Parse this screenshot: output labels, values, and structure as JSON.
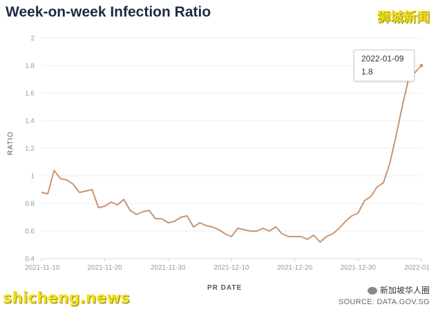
{
  "header": {
    "title": "Week-on-week Infection Ratio",
    "brand_cn": "狮城新闻"
  },
  "tooltip": {
    "date": "2022-01-09",
    "value": "1.8"
  },
  "footer": {
    "watermark": "shicheng.news",
    "wechat_label": "新加坡华人圈",
    "source": "SOURCE: DATA.GOV.SG"
  },
  "colors": {
    "line": "#c99470",
    "grid": "#ececec",
    "tick_text": "#9a9a9a",
    "brand_yellow": "#f2e21b"
  },
  "icons": [
    "wechat-icon"
  ],
  "chart_data": {
    "type": "line",
    "title": "Week-on-week Infection Ratio",
    "xlabel": "PR DATE",
    "ylabel": "RATIO",
    "ylim": [
      0.4,
      2
    ],
    "yticks": [
      0.4,
      0.6,
      0.8,
      1,
      1.2,
      1.4,
      1.6,
      1.8,
      2
    ],
    "ytick_labels": [
      "0.4",
      "0.6",
      "0.8",
      "1",
      "1.2",
      "1.4",
      "1.6",
      "1.8",
      "2"
    ],
    "xtick_labels": [
      "2021-11-10",
      "2021-11-20",
      "2021-11-30",
      "2021-12-10",
      "2021-12-20",
      "2021-12-30",
      "2022-01"
    ],
    "xtick_days": [
      0,
      10,
      20,
      30,
      40,
      50,
      60
    ],
    "grid": true,
    "x": [
      "2021-11-10",
      "2021-11-11",
      "2021-11-12",
      "2021-11-13",
      "2021-11-14",
      "2021-11-15",
      "2021-11-16",
      "2021-11-17",
      "2021-11-18",
      "2021-11-19",
      "2021-11-20",
      "2021-11-21",
      "2021-11-22",
      "2021-11-23",
      "2021-11-24",
      "2021-11-25",
      "2021-11-26",
      "2021-11-27",
      "2021-11-28",
      "2021-11-29",
      "2021-11-30",
      "2021-12-01",
      "2021-12-02",
      "2021-12-03",
      "2021-12-04",
      "2021-12-05",
      "2021-12-06",
      "2021-12-07",
      "2021-12-08",
      "2021-12-09",
      "2021-12-10",
      "2021-12-11",
      "2021-12-12",
      "2021-12-13",
      "2021-12-14",
      "2021-12-15",
      "2021-12-16",
      "2021-12-17",
      "2021-12-18",
      "2021-12-19",
      "2021-12-20",
      "2021-12-21",
      "2021-12-22",
      "2021-12-23",
      "2021-12-24",
      "2021-12-25",
      "2021-12-26",
      "2021-12-27",
      "2021-12-28",
      "2021-12-29",
      "2021-12-30",
      "2021-12-31",
      "2022-01-01",
      "2022-01-02",
      "2022-01-03",
      "2022-01-04",
      "2022-01-05",
      "2022-01-06",
      "2022-01-07",
      "2022-01-08",
      "2022-01-09"
    ],
    "series": [
      {
        "values": [
          0.88,
          0.87,
          1.04,
          0.98,
          0.97,
          0.94,
          0.88,
          0.89,
          0.9,
          0.77,
          0.78,
          0.81,
          0.79,
          0.83,
          0.75,
          0.72,
          0.74,
          0.75,
          0.69,
          0.69,
          0.66,
          0.67,
          0.7,
          0.71,
          0.63,
          0.66,
          0.64,
          0.63,
          0.61,
          0.58,
          0.56,
          0.62,
          0.61,
          0.6,
          0.6,
          0.62,
          0.6,
          0.63,
          0.58,
          0.56,
          0.56,
          0.56,
          0.54,
          0.57,
          0.52,
          0.56,
          0.58,
          0.62,
          0.67,
          0.71,
          0.73,
          0.82,
          0.85,
          0.92,
          0.95,
          1.09,
          1.29,
          1.51,
          1.71,
          1.75,
          1.8
        ]
      }
    ]
  }
}
